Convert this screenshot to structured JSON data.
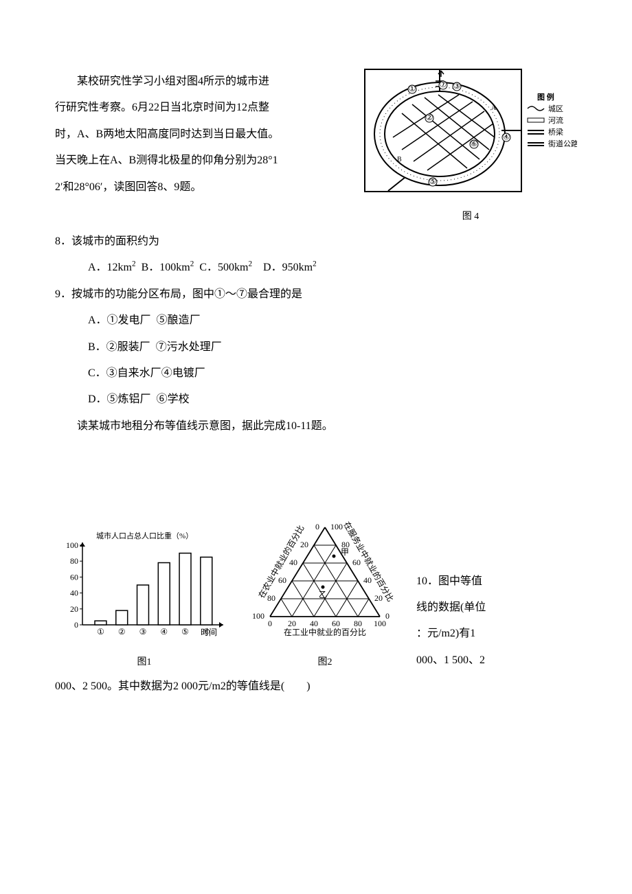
{
  "intro": {
    "l1": "某校研究性学习小组对图4所示的城市进",
    "l2": "行研究性考察。6月22日当北京时间为12点整",
    "l3": "时，A、B两地太阳高度同时达到当日最大值。",
    "l4": "当天晚上在A、B测得北极星的仰角分别为28°1",
    "l5": "2′和28°06′，读图回答8、9题。"
  },
  "fig4": {
    "caption": "图 4",
    "legend_title": "图 例",
    "legend": [
      "城区",
      "河流",
      "桥梁",
      "街道公路"
    ],
    "node_labels": [
      "①",
      "②",
      "③",
      "④",
      "⑤",
      "⑥",
      "⑦"
    ],
    "a": "A",
    "b": "B",
    "colors": {
      "stroke": "#000000",
      "fill_city": "#ffffff",
      "fill_river": "#ffffff"
    }
  },
  "q8": {
    "stem": "8．该城市的面积约为",
    "A": "A．12km",
    "B": "B．100km",
    "C": "C．500km",
    "D": "D．950km",
    "sup": "2"
  },
  "q9": {
    "stem": "9．按城市的功能分区布局，图中①～⑦最合理的是",
    "A1": "A．①发电厂",
    "A2": "⑤酿造厂",
    "B1": "B．②服装厂",
    "B2": "⑦污水处理厂",
    "C1": "C．③自来水厂",
    "C2": "④电镀厂",
    "D1": "D．⑤炼铝厂",
    "D2": "⑥学校"
  },
  "pre10": "读某城市地租分布等值线示意图，据此完成10-11题。",
  "bar_chart": {
    "title": "城市人口占总人口比重（%）",
    "caption": "图1",
    "xlabel": "时间",
    "x_cats": [
      "①",
      "②",
      "③",
      "④",
      "⑤",
      "⑥"
    ],
    "y_ticks": [
      0,
      20,
      40,
      60,
      80,
      100
    ],
    "bars": [
      5,
      18,
      50,
      78,
      90,
      85
    ],
    "axis_color": "#000000",
    "bar_stroke": "#000000",
    "bar_fill": "#ffffff"
  },
  "tri_chart": {
    "caption": "图2",
    "bottom_label": "在工业中就业的百分比",
    "left_label": "在农业中就业的百分比",
    "right_label": "在服务业中就业的百分比",
    "ticks_bottom": [
      "0",
      "20",
      "40",
      "60",
      "80",
      "100"
    ],
    "ticks_left": [
      "100",
      "80",
      "60",
      "40",
      "20",
      "0"
    ],
    "ticks_right": [
      "0",
      "20",
      "40",
      "60",
      "80",
      "100"
    ],
    "pt_upper": "甲",
    "pt_lower": "乙",
    "stroke": "#000000"
  },
  "q10": {
    "r1": "10．图中等值",
    "r2": "线的数据(单位",
    "r3": "：元/m2)有1",
    "r4": "000、1 500、2",
    "cont": "000、2 500。其中数据为2 000元/m2的等值线是(　　)"
  }
}
